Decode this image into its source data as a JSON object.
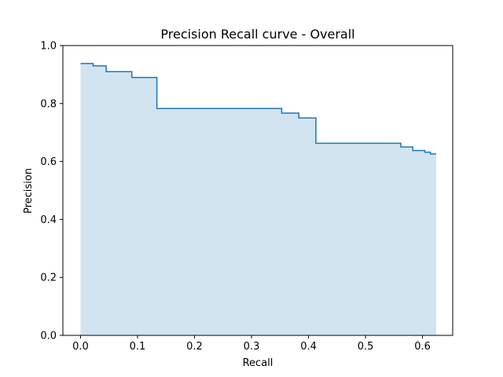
{
  "chart_data": {
    "type": "area",
    "title": "Precision Recall curve - Overall",
    "xlabel": "Recall",
    "ylabel": "Precision",
    "xlim": [
      -0.031,
      0.653
    ],
    "ylim": [
      0.0,
      1.0
    ],
    "xticks": [
      "0.0",
      "0.1",
      "0.2",
      "0.3",
      "0.4",
      "0.5",
      "0.6"
    ],
    "yticks": [
      "0.0",
      "0.2",
      "0.4",
      "0.6",
      "0.8",
      "1.0"
    ],
    "grid": false,
    "legend": "none",
    "colors": {
      "line": "#1f77b4",
      "fill": "#1f77b4",
      "fill_opacity": 0.2
    },
    "series": [
      {
        "step": "post",
        "recall": [
          0.0,
          0.022,
          0.045,
          0.09,
          0.134,
          0.353,
          0.383,
          0.413,
          0.562,
          0.583,
          0.604,
          0.614,
          0.624
        ],
        "precision": [
          0.938,
          0.93,
          0.91,
          0.89,
          0.783,
          0.767,
          0.75,
          0.663,
          0.65,
          0.638,
          0.632,
          0.626,
          0.626
        ]
      }
    ]
  }
}
